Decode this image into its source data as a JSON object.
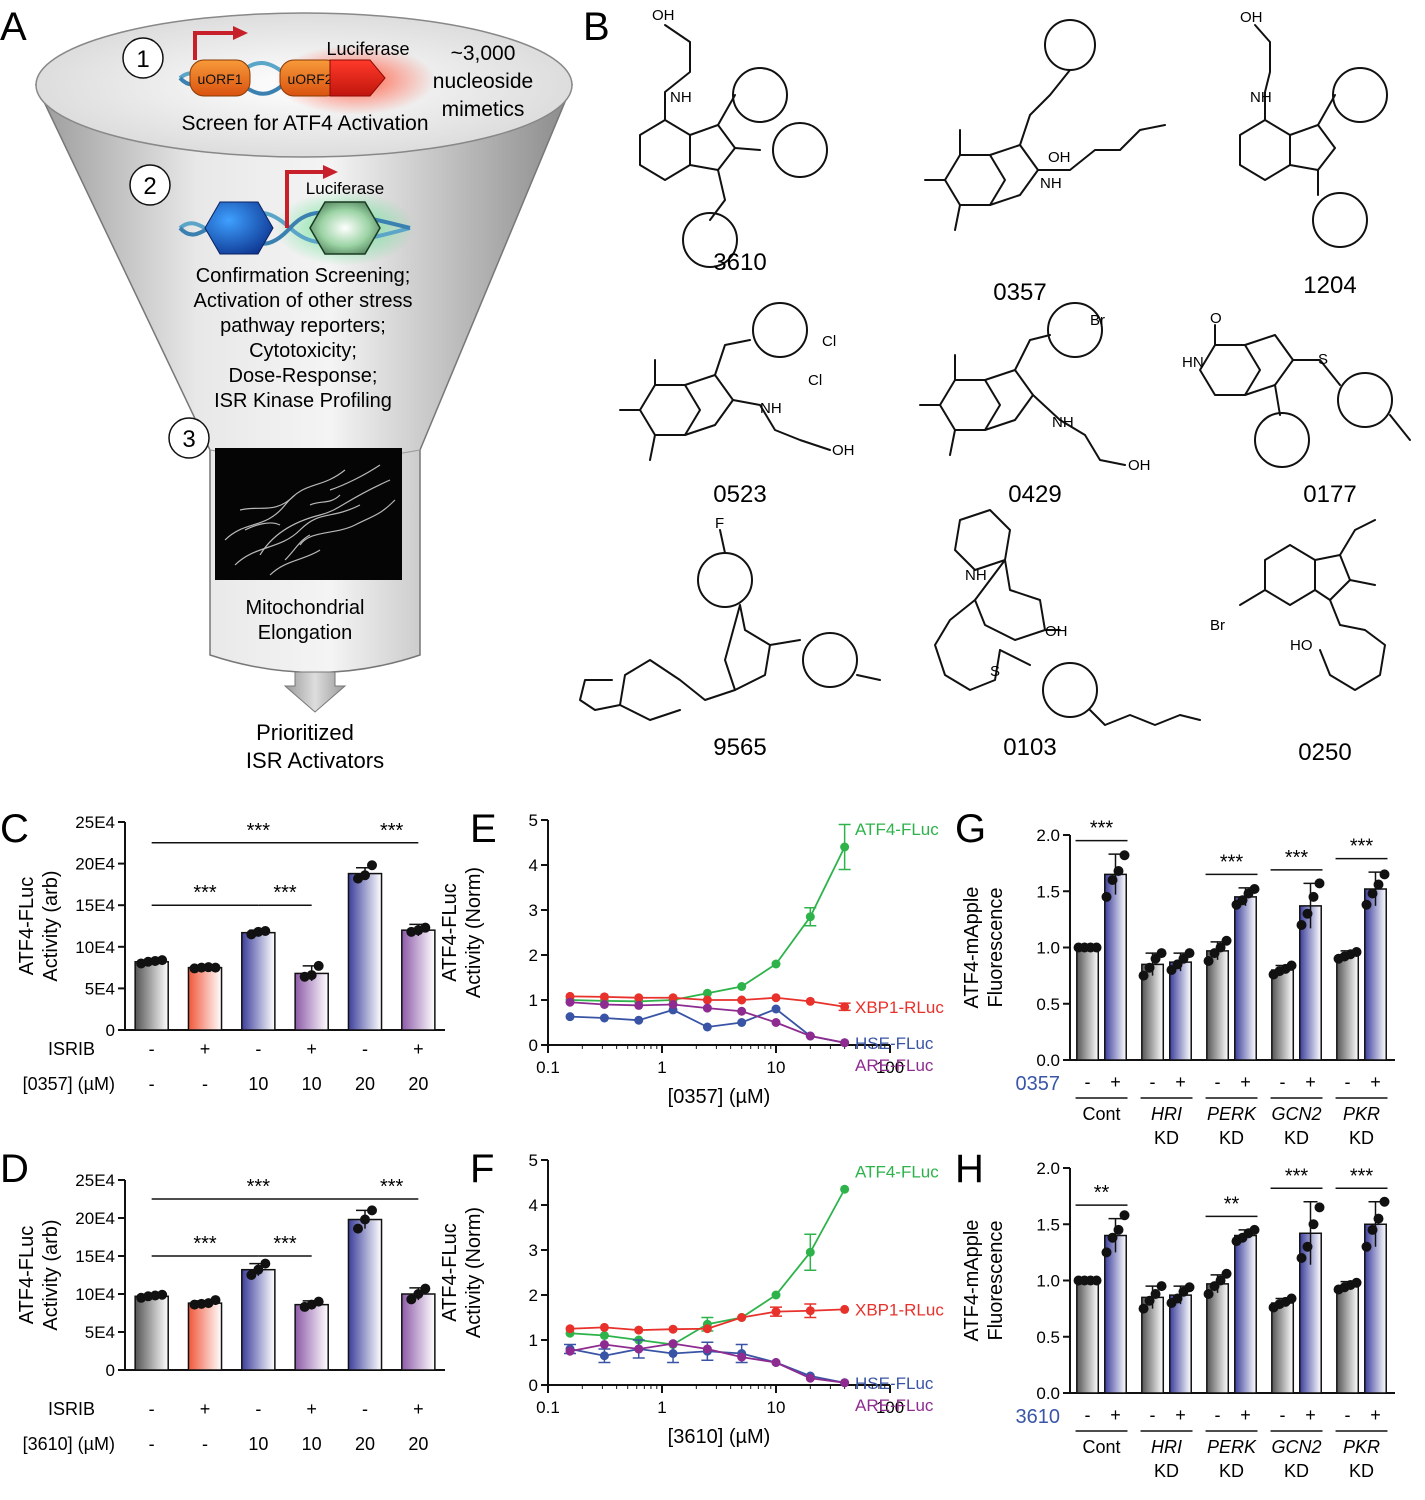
{
  "panels": {
    "A": {
      "letter": "A",
      "step1": {
        "number": "1",
        "orf1": "uORF1",
        "orf2": "uORF2",
        "reporter": "Luciferase",
        "library_line1": "~3,000",
        "library_line2": "nucleoside",
        "library_line3": "mimetics",
        "caption": "Screen for ATF4 Activation"
      },
      "step2": {
        "number": "2",
        "reporter": "Luciferase",
        "lines": [
          "Confirmation Screening;",
          "Activation of other stress",
          "pathway reporters;",
          "Cytotoxicity;",
          "Dose-Response;",
          "ISR Kinase Profiling"
        ]
      },
      "step3": {
        "number": "3",
        "lines": [
          "Mitochondrial",
          "Elongation"
        ]
      },
      "output": [
        "Prioritized",
        "ISR Activators"
      ]
    },
    "B": {
      "letter": "B",
      "compounds": [
        "3610",
        "0357",
        "1204",
        "0523",
        "0429",
        "0177",
        "9565",
        "0103",
        "0250"
      ],
      "atoms": {
        "OH": "OH",
        "NH": "NH",
        "N": "N",
        "O": "O",
        "Cl": "Cl",
        "Br": "Br",
        "F": "F",
        "S": "S",
        "HN": "HN",
        "HO": "HO"
      }
    },
    "C": {
      "letter": "C"
    },
    "D": {
      "letter": "D"
    },
    "E": {
      "letter": "E"
    },
    "F": {
      "letter": "F"
    },
    "G": {
      "letter": "G"
    },
    "H": {
      "letter": "H"
    }
  },
  "chart_data": [
    {
      "id": "C",
      "type": "bar",
      "ylabel": [
        "ATF4-FLuc",
        "Activity (arb)"
      ],
      "yticks": [
        "0",
        "5E4",
        "10E4",
        "15E4",
        "20E4",
        "25E4"
      ],
      "ylim": [
        0,
        250000
      ],
      "row_labels": [
        "ISRIB",
        "[0357] (µM)"
      ],
      "categories": [
        {
          "isrib": "-",
          "dose": "-",
          "value": 82000,
          "sd": 2000,
          "color": "#555555",
          "points": [
            80000,
            82000,
            83000,
            84000
          ]
        },
        {
          "isrib": "+",
          "dose": "-",
          "value": 75000,
          "sd": 1500,
          "color": "#f0573a",
          "points": [
            74000,
            75000,
            75500,
            75000
          ]
        },
        {
          "isrib": "-",
          "dose": "10",
          "value": 117000,
          "sd": 3000,
          "color": "#3c3f9c",
          "points": [
            115000,
            118000,
            119000
          ]
        },
        {
          "isrib": "+",
          "dose": "10",
          "value": 68000,
          "sd": 9000,
          "color": "#8d5aa8",
          "points": [
            64000,
            66000,
            77000
          ]
        },
        {
          "isrib": "-",
          "dose": "20",
          "value": 188000,
          "sd": 7000,
          "color": "#3c3f9c",
          "points": [
            182000,
            186000,
            198000
          ]
        },
        {
          "isrib": "+",
          "dose": "20",
          "value": 120000,
          "sd": 7000,
          "color": "#8d5aa8",
          "points": [
            118000,
            120000,
            123000
          ]
        }
      ],
      "significance": [
        {
          "from": 0,
          "to": 4,
          "label": "***",
          "level": 225000
        },
        {
          "from": 0,
          "to": 2,
          "label": "***",
          "level": 150000
        },
        {
          "from": 2,
          "to": 3,
          "label": "***",
          "level": 150000
        },
        {
          "from": 4,
          "to": 5,
          "label": "***",
          "level": 225000
        }
      ]
    },
    {
      "id": "D",
      "type": "bar",
      "ylabel": [
        "ATF4-FLuc",
        "Activity (arb)"
      ],
      "yticks": [
        "0",
        "5E4",
        "10E4",
        "15E4",
        "20E4",
        "25E4"
      ],
      "ylim": [
        0,
        250000
      ],
      "row_labels": [
        "ISRIB",
        "[3610] (µM)"
      ],
      "categories": [
        {
          "isrib": "-",
          "dose": "-",
          "value": 97000,
          "sd": 2000,
          "color": "#555555",
          "points": [
            95000,
            97000,
            98000,
            99000
          ]
        },
        {
          "isrib": "+",
          "dose": "-",
          "value": 88000,
          "sd": 3000,
          "color": "#f0573a",
          "points": [
            86000,
            87000,
            88000,
            92000
          ]
        },
        {
          "isrib": "-",
          "dose": "10",
          "value": 132000,
          "sd": 8000,
          "color": "#3c3f9c",
          "points": [
            125000,
            132000,
            140000
          ]
        },
        {
          "isrib": "+",
          "dose": "10",
          "value": 86000,
          "sd": 5000,
          "color": "#8d5aa8",
          "points": [
            83000,
            86000,
            90000
          ]
        },
        {
          "isrib": "-",
          "dose": "20",
          "value": 198000,
          "sd": 12000,
          "color": "#3c3f9c",
          "points": [
            186000,
            198000,
            210000
          ]
        },
        {
          "isrib": "+",
          "dose": "20",
          "value": 100000,
          "sd": 8000,
          "color": "#8d5aa8",
          "points": [
            93000,
            100000,
            107000
          ]
        }
      ],
      "significance": [
        {
          "from": 0,
          "to": 4,
          "label": "***",
          "level": 225000
        },
        {
          "from": 0,
          "to": 2,
          "label": "***",
          "level": 150000
        },
        {
          "from": 2,
          "to": 3,
          "label": "***",
          "level": 150000
        },
        {
          "from": 4,
          "to": 5,
          "label": "***",
          "level": 225000
        }
      ]
    },
    {
      "id": "E",
      "type": "line",
      "xlabel": "[0357] (µM)",
      "ylabel": [
        "ATF4-FLuc",
        "Activity (Norm)"
      ],
      "xscale": "log",
      "xlim": [
        0.1,
        100
      ],
      "ylim": [
        0,
        5
      ],
      "xticks": [
        "0.1",
        "1",
        "10",
        "100"
      ],
      "yticks": [
        "0",
        "1",
        "2",
        "3",
        "4",
        "5"
      ],
      "x": [
        0.156,
        0.3125,
        0.625,
        1.25,
        2.5,
        5,
        10,
        20,
        40
      ],
      "series": [
        {
          "name": "ATF4-FLuc",
          "color": "#2db34a",
          "values": [
            1.0,
            0.98,
            0.97,
            1.0,
            1.15,
            1.3,
            1.8,
            2.85,
            4.4
          ],
          "err": [
            0,
            0,
            0,
            0,
            0,
            0,
            0,
            0.2,
            0.5
          ]
        },
        {
          "name": "XBP1-RLuc",
          "color": "#e8312a",
          "values": [
            1.08,
            1.07,
            1.05,
            1.05,
            1.0,
            1.0,
            1.05,
            0.97,
            0.85
          ],
          "err": [
            0,
            0,
            0,
            0,
            0,
            0,
            0,
            0,
            0.08
          ]
        },
        {
          "name": "HSE-FLuc",
          "color": "#3954a5",
          "values": [
            0.63,
            0.6,
            0.55,
            0.78,
            0.4,
            0.5,
            0.8,
            0.2,
            0.05
          ],
          "err": [
            0,
            0,
            0,
            0,
            0,
            0,
            0,
            0,
            0
          ]
        },
        {
          "name": "ARE-FLuc",
          "color": "#8e2b90",
          "values": [
            0.95,
            0.9,
            0.88,
            0.9,
            0.82,
            0.75,
            0.5,
            0.2,
            0.05
          ],
          "err": [
            0,
            0,
            0,
            0,
            0,
            0,
            0,
            0,
            0
          ]
        }
      ]
    },
    {
      "id": "F",
      "type": "line",
      "xlabel": "[3610] (µM)",
      "ylabel": [
        "ATF4-FLuc",
        "Activity (Norm)"
      ],
      "xscale": "log",
      "xlim": [
        0.1,
        100
      ],
      "ylim": [
        0,
        5
      ],
      "xticks": [
        "0.1",
        "1",
        "10",
        "100"
      ],
      "yticks": [
        "0",
        "1",
        "2",
        "3",
        "4",
        "5"
      ],
      "x": [
        0.156,
        0.3125,
        0.625,
        1.25,
        2.5,
        5,
        10,
        20,
        40
      ],
      "series": [
        {
          "name": "ATF4-FLuc",
          "color": "#2db34a",
          "values": [
            1.15,
            1.1,
            1.0,
            0.9,
            1.35,
            1.5,
            2.0,
            2.95,
            4.35
          ],
          "err": [
            0,
            0,
            0,
            0,
            0.15,
            0,
            0,
            0.4,
            0
          ]
        },
        {
          "name": "XBP1-RLuc",
          "color": "#e8312a",
          "values": [
            1.25,
            1.28,
            1.22,
            1.24,
            1.25,
            1.5,
            1.63,
            1.65,
            1.68
          ],
          "err": [
            0,
            0,
            0,
            0,
            0,
            0,
            0.1,
            0.15,
            0
          ]
        },
        {
          "name": "HSE-FLuc",
          "color": "#3954a5",
          "values": [
            0.8,
            0.65,
            0.8,
            0.7,
            0.75,
            0.7,
            0.5,
            0.2,
            0.05
          ],
          "err": [
            0.1,
            0.15,
            0.2,
            0.2,
            0.2,
            0.2,
            0,
            0,
            0
          ]
        },
        {
          "name": "ARE-FLuc",
          "color": "#8e2b90",
          "values": [
            0.75,
            0.9,
            0.8,
            0.92,
            0.8,
            0.62,
            0.5,
            0.15,
            0.05
          ],
          "err": [
            0,
            0,
            0,
            0,
            0,
            0,
            0,
            0,
            0
          ]
        }
      ]
    },
    {
      "id": "G",
      "type": "bar",
      "ylabel": [
        "ATF4-mApple",
        "Fluorescence"
      ],
      "yticks": [
        "0.0",
        "0.5",
        "1.0",
        "1.5",
        "2.0"
      ],
      "ylim": [
        0,
        2.0
      ],
      "treatment_label": "0357",
      "groups": [
        {
          "label": "Cont",
          "italic": false,
          "kd": ""
        },
        {
          "label": "HRI",
          "italic": true,
          "kd": "KD"
        },
        {
          "label": "PERK",
          "italic": true,
          "kd": "KD"
        },
        {
          "label": "GCN2",
          "italic": true,
          "kd": "KD"
        },
        {
          "label": "PKR",
          "italic": true,
          "kd": "KD"
        }
      ],
      "signs": [
        "-",
        "+"
      ],
      "bars": [
        {
          "value": 1.0,
          "sd": 0.01,
          "color": "#555555",
          "points": [
            1.0,
            1.0,
            1.0,
            1.0
          ]
        },
        {
          "value": 1.65,
          "sd": 0.18,
          "color": "#3c3f9c",
          "points": [
            1.45,
            1.6,
            1.68,
            1.82
          ]
        },
        {
          "value": 0.85,
          "sd": 0.1,
          "color": "#555555",
          "points": [
            0.75,
            0.82,
            0.9,
            0.95
          ]
        },
        {
          "value": 0.87,
          "sd": 0.08,
          "color": "#3c3f9c",
          "points": [
            0.8,
            0.85,
            0.9,
            0.95
          ]
        },
        {
          "value": 0.97,
          "sd": 0.08,
          "color": "#555555",
          "points": [
            0.88,
            0.95,
            1.0,
            1.06
          ]
        },
        {
          "value": 1.45,
          "sd": 0.08,
          "color": "#3c3f9c",
          "points": [
            1.38,
            1.42,
            1.48,
            1.52
          ]
        },
        {
          "value": 0.8,
          "sd": 0.04,
          "color": "#555555",
          "points": [
            0.76,
            0.79,
            0.81,
            0.84
          ]
        },
        {
          "value": 1.37,
          "sd": 0.2,
          "color": "#3c3f9c",
          "points": [
            1.2,
            1.3,
            1.45,
            1.57
          ]
        },
        {
          "value": 0.93,
          "sd": 0.04,
          "color": "#555555",
          "points": [
            0.9,
            0.92,
            0.94,
            0.96
          ]
        },
        {
          "value": 1.52,
          "sd": 0.15,
          "color": "#3c3f9c",
          "points": [
            1.38,
            1.48,
            1.56,
            1.65
          ]
        }
      ],
      "significance": [
        {
          "group": 0,
          "label": "***"
        },
        {
          "group": 2,
          "label": "***"
        },
        {
          "group": 3,
          "label": "***"
        },
        {
          "group": 4,
          "label": "***"
        }
      ]
    },
    {
      "id": "H",
      "type": "bar",
      "ylabel": [
        "ATF4-mApple",
        "Fluorescence"
      ],
      "yticks": [
        "0.0",
        "0.5",
        "1.0",
        "1.5",
        "2.0"
      ],
      "ylim": [
        0,
        2.0
      ],
      "treatment_label": "3610",
      "groups": [
        {
          "label": "Cont",
          "italic": false,
          "kd": ""
        },
        {
          "label": "HRI",
          "italic": true,
          "kd": "KD"
        },
        {
          "label": "PERK",
          "italic": true,
          "kd": "KD"
        },
        {
          "label": "GCN2",
          "italic": true,
          "kd": "KD"
        },
        {
          "label": "PKR",
          "italic": true,
          "kd": "KD"
        }
      ],
      "signs": [
        "-",
        "+"
      ],
      "bars": [
        {
          "value": 1.0,
          "sd": 0.01,
          "color": "#555555",
          "points": [
            1.0,
            1.0,
            1.0,
            1.0
          ]
        },
        {
          "value": 1.4,
          "sd": 0.15,
          "color": "#3c3f9c",
          "points": [
            1.25,
            1.38,
            1.45,
            1.58
          ]
        },
        {
          "value": 0.85,
          "sd": 0.1,
          "color": "#555555",
          "points": [
            0.75,
            0.82,
            0.88,
            0.95
          ]
        },
        {
          "value": 0.87,
          "sd": 0.08,
          "color": "#3c3f9c",
          "points": [
            0.8,
            0.84,
            0.9,
            0.94
          ]
        },
        {
          "value": 0.97,
          "sd": 0.08,
          "color": "#555555",
          "points": [
            0.88,
            0.95,
            1.0,
            1.06
          ]
        },
        {
          "value": 1.4,
          "sd": 0.05,
          "color": "#3c3f9c",
          "points": [
            1.35,
            1.38,
            1.42,
            1.45
          ]
        },
        {
          "value": 0.8,
          "sd": 0.04,
          "color": "#555555",
          "points": [
            0.76,
            0.79,
            0.81,
            0.84
          ]
        },
        {
          "value": 1.42,
          "sd": 0.28,
          "color": "#3c3f9c",
          "points": [
            1.2,
            1.3,
            1.5,
            1.65
          ]
        },
        {
          "value": 0.95,
          "sd": 0.04,
          "color": "#555555",
          "points": [
            0.92,
            0.94,
            0.96,
            0.98
          ]
        },
        {
          "value": 1.5,
          "sd": 0.2,
          "color": "#3c3f9c",
          "points": [
            1.3,
            1.45,
            1.55,
            1.7
          ]
        }
      ],
      "significance": [
        {
          "group": 0,
          "label": "**"
        },
        {
          "group": 2,
          "label": "**"
        },
        {
          "group": 3,
          "label": "***"
        },
        {
          "group": 4,
          "label": "***"
        }
      ]
    }
  ]
}
